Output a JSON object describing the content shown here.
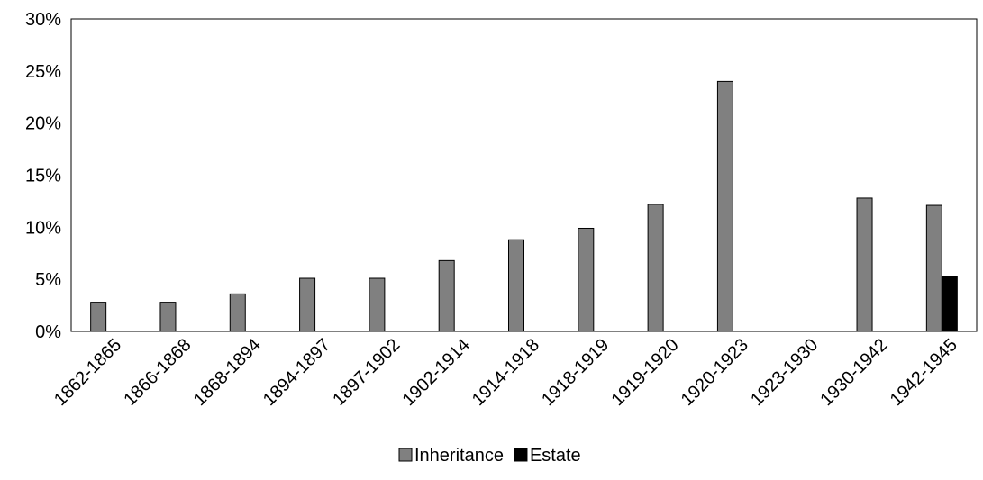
{
  "chart_data": {
    "type": "bar",
    "title": "",
    "xlabel": "",
    "ylabel": "",
    "categories": [
      "1862-1865",
      "1866-1868",
      "1868-1894",
      "1894-1897",
      "1897-1902",
      "1902-1914",
      "1914-1918",
      "1918-1919",
      "1919-1920",
      "1920-1923",
      "1923-1930",
      "1930-1942",
      "1942-1945"
    ],
    "series": [
      {
        "name": "Inheritance",
        "color": "#808080",
        "values": [
          2.8,
          2.8,
          3.6,
          5.1,
          5.1,
          6.8,
          8.8,
          9.9,
          12.2,
          24.0,
          null,
          12.8,
          12.1
        ]
      },
      {
        "name": "Estate",
        "color": "#000000",
        "values": [
          null,
          null,
          null,
          null,
          null,
          null,
          null,
          null,
          null,
          null,
          null,
          null,
          5.3
        ]
      }
    ],
    "ylim": [
      0,
      30
    ],
    "yticks": [
      0,
      5,
      10,
      15,
      20,
      25,
      30
    ],
    "ytick_labels": [
      "0%",
      "5%",
      "10%",
      "15%",
      "20%",
      "25%",
      "30%"
    ],
    "grid": false,
    "legend_position": "bottom-center"
  }
}
